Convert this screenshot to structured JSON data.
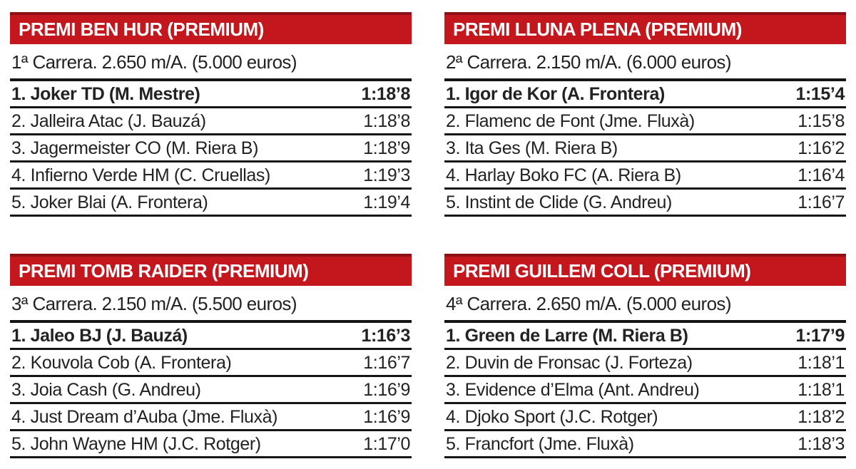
{
  "theme": {
    "accent_red": "#c4161d",
    "accent_red_dark": "#8c1016",
    "rule_color": "#151515",
    "text_color": "#222222",
    "header_text_color": "#ffffff"
  },
  "sections": [
    {
      "title": "PREMI BEN HUR (PREMIUM)",
      "race_info": "1ª Carrera. 2.650 m/A. (5.000 euros)",
      "results": [
        {
          "entry": "1. Joker TD (M. Mestre)",
          "time": "1:18’8"
        },
        {
          "entry": "2. Jalleira Atac (J. Bauzá)",
          "time": "1:18’8"
        },
        {
          "entry": "3. Jagermeister CO (M. Riera B)",
          "time": "1:18’9"
        },
        {
          "entry": "4. Infierno Verde HM (C. Cruellas)",
          "time": "1:19’3"
        },
        {
          "entry": "5. Joker Blai (A. Frontera)",
          "time": "1:19’4"
        }
      ]
    },
    {
      "title": "PREMI LLUNA PLENA (PREMIUM)",
      "race_info": "2ª Carrera. 2.150 m/A. (6.000 euros)",
      "results": [
        {
          "entry": "1. Igor de Kor (A. Frontera)",
          "time": "1:15’4"
        },
        {
          "entry": "2. Flamenc de Font (Jme. Fluxà)",
          "time": "1:15’8"
        },
        {
          "entry": "3. Ita Ges (M. Riera B)",
          "time": "1:16’2"
        },
        {
          "entry": "4. Harlay Boko FC (A. Riera B)",
          "time": "1:16’4"
        },
        {
          "entry": "5. Instint de Clide (G. Andreu)",
          "time": "1:16’7"
        }
      ]
    },
    {
      "title": "PREMI TOMB RAIDER (PREMIUM)",
      "race_info": "3ª Carrera. 2.150 m/A. (5.500 euros)",
      "results": [
        {
          "entry": "1. Jaleo BJ (J. Bauzá)",
          "time": "1:16’3"
        },
        {
          "entry": "2. Kouvola Cob (A. Frontera)",
          "time": "1:16’7"
        },
        {
          "entry": "3. Joia Cash (G. Andreu)",
          "time": "1:16’9"
        },
        {
          "entry": "4. Just Dream d’Auba (Jme. Fluxà)",
          "time": "1:16’9"
        },
        {
          "entry": "5. John Wayne HM (J.C. Rotger)",
          "time": "1:17’0"
        }
      ]
    },
    {
      "title": "PREMI GUILLEM COLL (PREMIUM)",
      "race_info": "4ª Carrera. 2.650 m/A. (5.000 euros)",
      "results": [
        {
          "entry": "1. Green de Larre (M. Riera B)",
          "time": "1:17’9"
        },
        {
          "entry": "2. Duvin de Fronsac (J. Forteza)",
          "time": "1:18’1"
        },
        {
          "entry": "3. Evidence d’Elma (Ant. Andreu)",
          "time": "1:18’1"
        },
        {
          "entry": "4. Djoko Sport (J.C. Rotger)",
          "time": "1:18’2"
        },
        {
          "entry": "5. Francfort (Jme. Fluxà)",
          "time": "1:18’3"
        }
      ]
    }
  ]
}
